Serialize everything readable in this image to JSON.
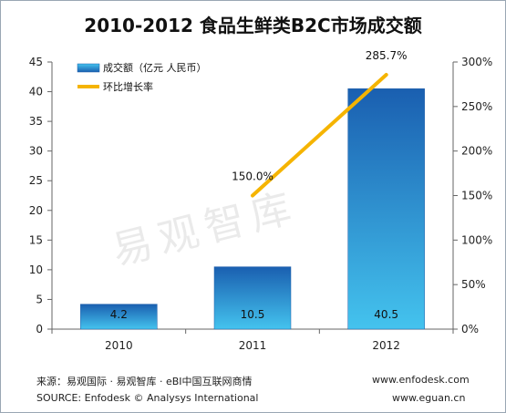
{
  "chart_data": {
    "type": "bar",
    "title": "2010-2012  食品生鲜类B2C市场成交额",
    "categories": [
      "2010",
      "2011",
      "2012"
    ],
    "series": [
      {
        "name": "成交额（亿元 人民币）",
        "type": "bar",
        "axis": "left",
        "values": [
          4.2,
          10.5,
          40.5
        ],
        "labels": [
          "4.2",
          "10.5",
          "40.5"
        ]
      },
      {
        "name": "环比增长率",
        "type": "line",
        "axis": "right",
        "values": [
          null,
          150.0,
          285.7
        ],
        "labels": [
          "",
          "150.0%",
          "285.7%"
        ]
      }
    ],
    "y_left": {
      "min": 0,
      "max": 45,
      "ticks": [
        "0",
        "5",
        "10",
        "15",
        "20",
        "25",
        "30",
        "35",
        "40",
        "45"
      ]
    },
    "y_right": {
      "min": 0,
      "max": 300,
      "ticks": [
        "0%",
        "50%",
        "100%",
        "150%",
        "200%",
        "250%",
        "300%"
      ]
    },
    "grid": false,
    "legend": "top-left",
    "colors": {
      "bar_top": "#1a5fb0",
      "bar_bottom": "#44c3ee",
      "line": "#f5b400"
    }
  },
  "watermark": "易观智库",
  "footer": {
    "source_cn": "来源：易观国际 · 易观智库 · eBI中国互联网商情",
    "source_en": "SOURCE: Enfodesk © Analysys International",
    "site1": "www.enfodesk.com",
    "site2": "www.eguan.cn"
  }
}
